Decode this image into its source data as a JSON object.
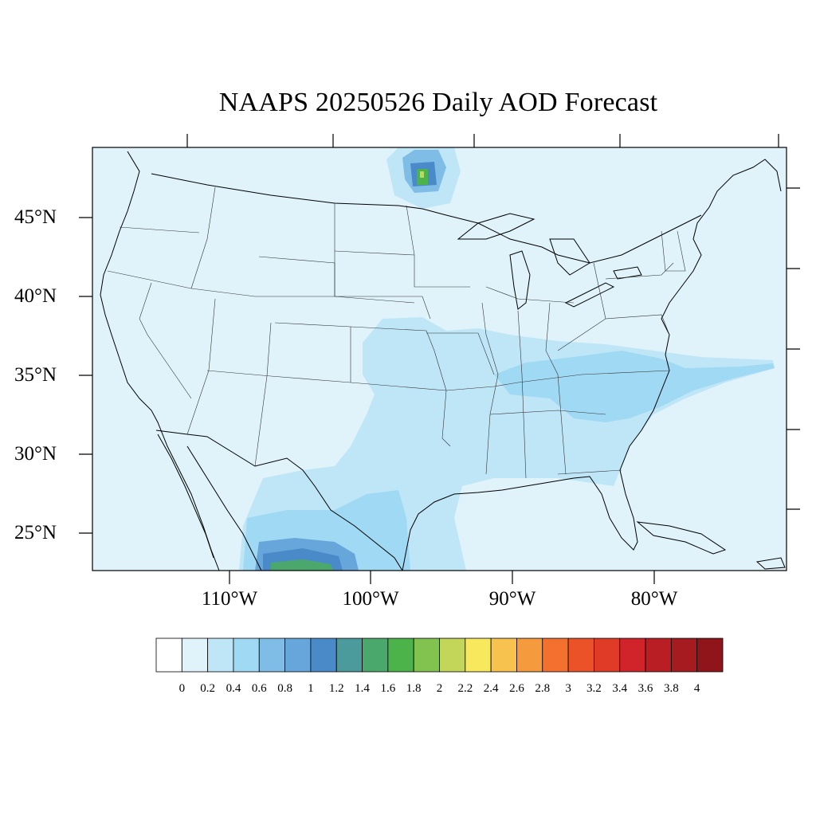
{
  "title": "NAAPS 20250526 Daily AOD Forecast",
  "lat_labels": [
    "45°N",
    "40°N",
    "35°N",
    "30°N",
    "25°N"
  ],
  "lon_labels": [
    "110°W",
    "100°W",
    "90°W",
    "80°W"
  ],
  "colorbar": {
    "ticks": [
      "0",
      "0.2",
      "0.4",
      "0.6",
      "0.8",
      "1",
      "1.2",
      "1.4",
      "1.6",
      "1.8",
      "2",
      "2.2",
      "2.4",
      "2.6",
      "2.8",
      "3",
      "3.2",
      "3.4",
      "3.6",
      "3.8",
      "4"
    ],
    "colors": [
      "#ffffff",
      "#e0f3fb",
      "#bfe6f7",
      "#a0d9f3",
      "#7fbde6",
      "#66a6da",
      "#4a8ac9",
      "#4b9a9c",
      "#4aa86c",
      "#4cb24a",
      "#82c24e",
      "#c3d65a",
      "#f7e85e",
      "#f8c24e",
      "#f69a3e",
      "#f4702f",
      "#ec5228",
      "#df3b27",
      "#d1232a",
      "#b81e24",
      "#a51b20",
      "#8f151a"
    ]
  },
  "map_regions": {
    "background_level": 1,
    "plumes": [
      {
        "name": "central-plains-haze",
        "level": 2
      },
      {
        "name": "southeast-haze",
        "level": 2
      },
      {
        "name": "carolinas-plume",
        "level": 3
      },
      {
        "name": "texas-mexico-haze",
        "level": 2
      },
      {
        "name": "texas-mexico-core",
        "level": 3
      },
      {
        "name": "mexico-high-core",
        "level": 5
      },
      {
        "name": "mexico-peak",
        "level": 7
      },
      {
        "name": "minnesota-hotspot",
        "level": 4
      },
      {
        "name": "minnesota-peak",
        "level": 8
      }
    ]
  }
}
